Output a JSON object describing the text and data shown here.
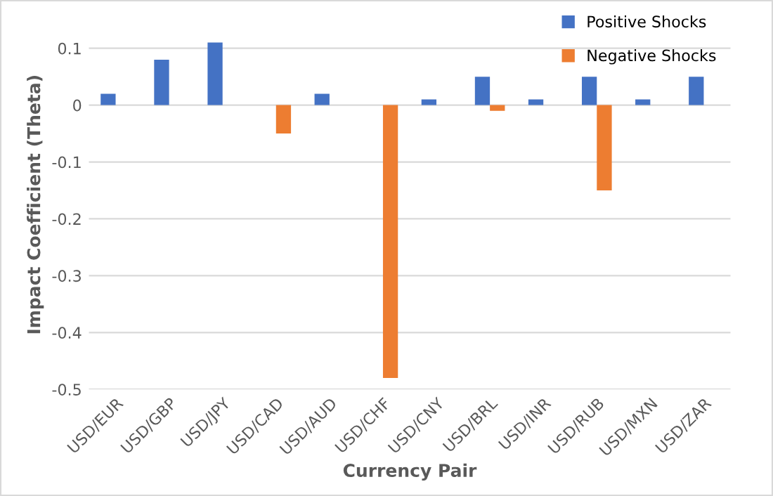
{
  "chart_data": {
    "type": "bar",
    "xlabel": "Currency Pair",
    "ylabel": "Impact Coefficient (Theta)",
    "categories": [
      "USD/EUR",
      "USD/GBP",
      "USD/JPY",
      "USD/CAD",
      "USD/AUD",
      "USD/CHF",
      "USD/CNY",
      "USD/BRL",
      "USD/INR",
      "USD/RUB",
      "USD/MXN",
      "USD/ZAR"
    ],
    "series": [
      {
        "name": "Positive Shocks",
        "color": "#4472c4",
        "values": [
          0.02,
          0.08,
          0.11,
          null,
          0.02,
          null,
          0.01,
          0.05,
          0.01,
          0.05,
          0.01,
          0.05
        ]
      },
      {
        "name": "Negative Shocks",
        "color": "#ed7d31",
        "values": [
          null,
          null,
          null,
          -0.05,
          null,
          -0.48,
          null,
          -0.01,
          null,
          -0.15,
          null,
          null
        ]
      }
    ],
    "ylim": [
      -0.5,
      0.15
    ],
    "yticks": [
      -0.5,
      -0.4,
      -0.3,
      -0.2,
      -0.1,
      0,
      0.1
    ],
    "grid": "y",
    "legend": "top right"
  }
}
